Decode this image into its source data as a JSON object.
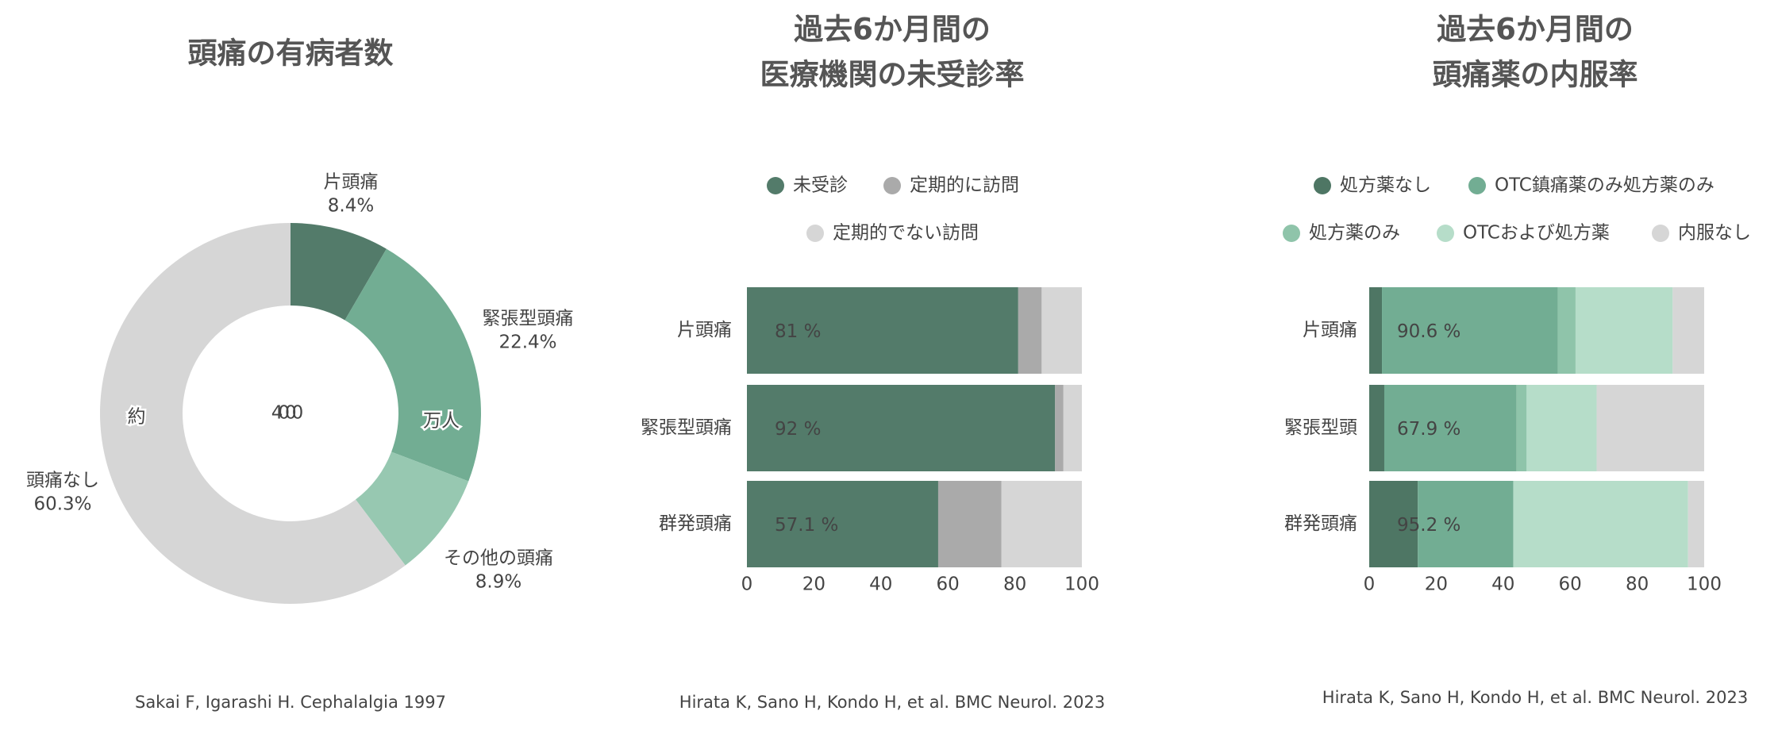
{
  "chart_data": [
    {
      "type": "donut",
      "title": [
        "頭痛の有病者数"
      ],
      "categories": [
        "片頭痛",
        "緊張型頭痛",
        "その他の頭痛",
        "頭痛なし"
      ],
      "values": [
        8.4,
        22.4,
        8.9,
        60.3
      ],
      "value_labels": [
        "8.4%",
        "22.4%",
        "8.9%",
        "60.3%"
      ],
      "colors": [
        "#537b6a",
        "#72ad93",
        "#97c8b1",
        "#d6d6d6"
      ],
      "center_text": [
        "約",
        "4000",
        "万人"
      ],
      "source": "Sakai F, Igarashi H. Cephalalgia 1997"
    },
    {
      "type": "stacked_barh",
      "title": [
        "過去6か月間の",
        "医療機関の未受診率"
      ],
      "categories": [
        "片頭痛",
        "緊張型頭痛",
        "群発頭痛"
      ],
      "series": [
        {
          "name": "未受診",
          "color": "#537b6a",
          "values": [
            81,
            92,
            57.1
          ],
          "value_labels": [
            "81 %",
            "92 %",
            "57.1 %"
          ]
        },
        {
          "name": "定期的に訪問",
          "color": "#aaaaaa",
          "values": [
            7,
            2.5,
            18.9
          ]
        },
        {
          "name": "定期的でない訪問",
          "color": "#d6d6d6",
          "values": [
            12,
            5.5,
            24
          ]
        }
      ],
      "xlim": [
        0,
        100
      ],
      "xticks": [
        0,
        20,
        40,
        60,
        80,
        100
      ],
      "source": "Hirata K, Sano H, Kondo H, et al. BMC Neurol. 2023"
    },
    {
      "type": "stacked_barh",
      "title": [
        "過去6か月間の",
        "頭痛薬の内服率"
      ],
      "categories": [
        "片頭痛",
        "緊張型頭",
        "群発頭痛"
      ],
      "series": [
        {
          "name": "処方薬なし",
          "color": "#4e7664",
          "values": [
            3.8,
            4.5,
            14.5
          ]
        },
        {
          "name": "OTC鎮痛薬のみ処方薬のみ",
          "color": "#72ad93",
          "values": [
            52.5,
            39.5,
            28.5
          ]
        },
        {
          "name": "処方薬のみ",
          "color": "#8fc4aa",
          "values": [
            5.3,
            3,
            0
          ]
        },
        {
          "name": "OTCおよび処方薬",
          "color": "#b6ddc9",
          "values": [
            29,
            20.9,
            52.2
          ]
        },
        {
          "name": "内服なし",
          "color": "#d6d6d6",
          "values": [
            9.4,
            32.1,
            4.8
          ]
        }
      ],
      "annotations": [
        "90.6 %",
        "67.9 %",
        "95.2 %"
      ],
      "xlim": [
        0,
        100
      ],
      "xticks": [
        0,
        20,
        40,
        60,
        80,
        100
      ],
      "source": "Hirata K, Sano H, Kondo H, et al. BMC Neurol. 2023"
    }
  ]
}
